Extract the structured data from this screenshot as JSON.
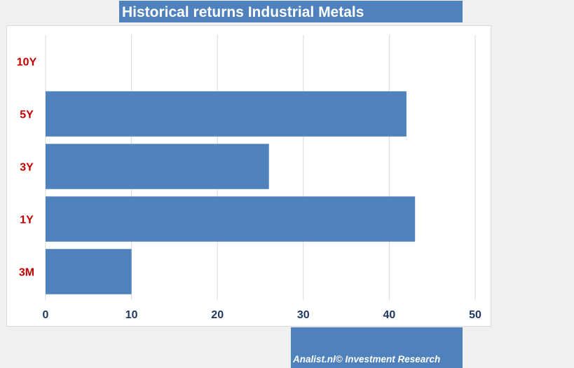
{
  "chart_data": {
    "type": "bar",
    "orientation": "horizontal",
    "title": "Historical returns Industrial Metals",
    "categories": [
      "10Y",
      "5Y",
      "3Y",
      "1Y",
      "3M"
    ],
    "values": [
      null,
      42,
      26,
      43,
      10
    ],
    "xlim": [
      0,
      50
    ],
    "x_ticks": [
      0,
      10,
      20,
      30,
      40,
      50
    ],
    "xlabel": "",
    "ylabel": "",
    "grid": "vertical",
    "bar_color": "#4f81bd",
    "category_label_color": "#c00000",
    "tick_label_color": "#1f3864"
  },
  "footer": {
    "credit": "Analist.nl© Investment Research"
  },
  "colors": {
    "title_background": "#4f81bd",
    "credit_background": "#4f81bd",
    "gridline": "#d9d9d9",
    "page_background": "#f0f0f0"
  }
}
